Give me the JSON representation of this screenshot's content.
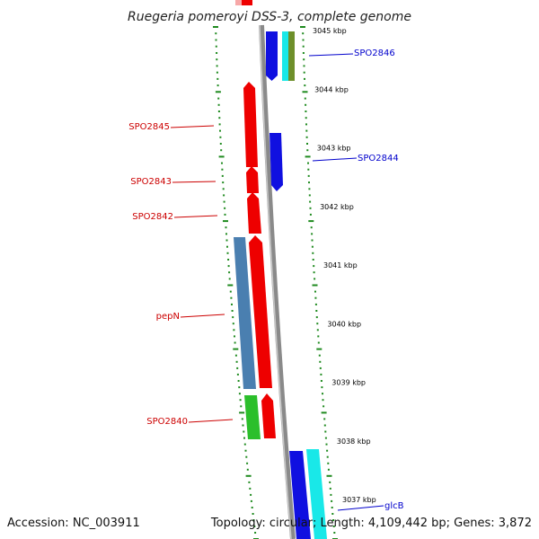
{
  "title": "Ruegeria pomeroyi DSS-3, complete genome",
  "footer": {
    "accession": "Accession: NC_003911",
    "topology": "Topology: circular; Length: 4,109,442 bp; Genes: 3,872"
  },
  "colors": {
    "forward_gene": "#ee0000",
    "reverse_gene": "#1010e0",
    "cyan_gene": "#19e8e8",
    "olive_gene": "#6e8f2a",
    "steelblue_gene": "#4a7fb0",
    "green_gene": "#2bbf2b",
    "label_forward": "#cc0000",
    "label_reverse": "#0000cc",
    "tick": "#1f8a1f",
    "backbone": "#8a8a8a"
  },
  "scale": {
    "unit": "kbp",
    "ticks": [
      {
        "value": 3045,
        "label": "3045 kbp"
      },
      {
        "value": 3044,
        "label": "3044 kbp"
      },
      {
        "value": 3043,
        "label": "3043 kbp"
      },
      {
        "value": 3042,
        "label": "3042 kbp"
      },
      {
        "value": 3041,
        "label": "3041 kbp"
      },
      {
        "value": 3040,
        "label": "3040 kbp"
      },
      {
        "value": 3039,
        "label": "3039 kbp"
      },
      {
        "value": 3038,
        "label": "3038 kbp"
      },
      {
        "value": 3037,
        "label": "3037 kbp"
      }
    ]
  },
  "labels": {
    "left": [
      {
        "text": "SPO2845",
        "gene": "SPO2845"
      },
      {
        "text": "SPO2843",
        "gene": "SPO2843"
      },
      {
        "text": "SPO2842",
        "gene": "SPO2842"
      },
      {
        "text": "pepN",
        "gene": "pepN"
      },
      {
        "text": "SPO2840",
        "gene": "SPO2840"
      }
    ],
    "right": [
      {
        "text": "SPO2846",
        "gene": "SPO2846"
      },
      {
        "text": "SPO2844",
        "gene": "SPO2844"
      },
      {
        "text": "glcB",
        "gene": "glcB"
      }
    ]
  }
}
